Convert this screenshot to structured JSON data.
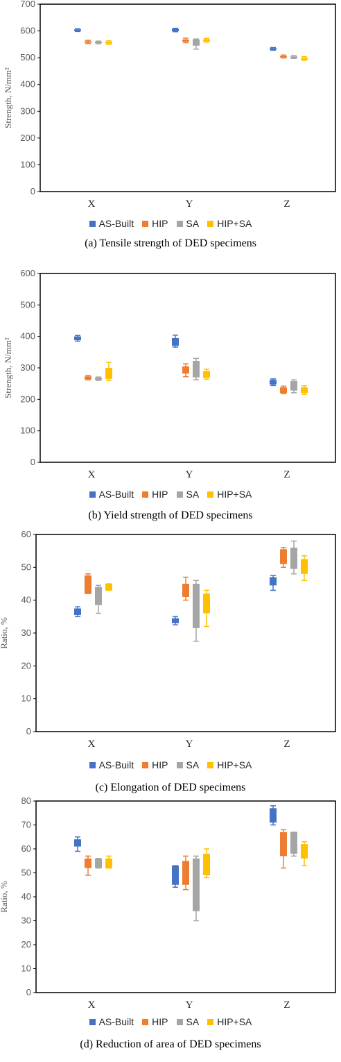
{
  "legend_items": [
    {
      "label": "AS-Built",
      "color": "#4472C4"
    },
    {
      "label": "HIP",
      "color": "#ED7D31"
    },
    {
      "label": "SA",
      "color": "#A5A5A5"
    },
    {
      "label": "HIP+SA",
      "color": "#FFC000"
    }
  ],
  "chart_data": [
    {
      "type": "box",
      "caption": "(a) Tensile strength of DED specimens",
      "ylabel": "Strength, N/mm²",
      "categories": [
        "X",
        "Y",
        "Z"
      ],
      "ylim": [
        0,
        700
      ],
      "yticks": [
        0,
        100,
        200,
        300,
        400,
        500,
        600,
        700
      ],
      "series": [
        {
          "name": "AS-Built",
          "values": [
            {
              "min": 598,
              "q1": 600,
              "q3": 606,
              "max": 608
            },
            {
              "min": 597,
              "q1": 599,
              "q3": 608,
              "max": 610
            },
            {
              "min": 528,
              "q1": 530,
              "q3": 536,
              "max": 538
            }
          ]
        },
        {
          "name": "HIP",
          "values": [
            {
              "min": 553,
              "q1": 556,
              "q3": 562,
              "max": 565
            },
            {
              "min": 556,
              "q1": 560,
              "q3": 568,
              "max": 573
            },
            {
              "min": 499,
              "q1": 501,
              "q3": 507,
              "max": 510
            }
          ]
        },
        {
          "name": "SA",
          "values": [
            {
              "min": 552,
              "q1": 554,
              "q3": 560,
              "max": 562
            },
            {
              "min": 532,
              "q1": 545,
              "q3": 568,
              "max": 570
            },
            {
              "min": 497,
              "q1": 499,
              "q3": 505,
              "max": 508
            }
          ]
        },
        {
          "name": "HIP+SA",
          "values": [
            {
              "min": 550,
              "q1": 553,
              "q3": 560,
              "max": 563
            },
            {
              "min": 558,
              "q1": 561,
              "q3": 569,
              "max": 572
            },
            {
              "min": 490,
              "q1": 493,
              "q3": 500,
              "max": 504
            }
          ]
        }
      ]
    },
    {
      "type": "box",
      "caption": "(b) Yield strength of DED specimens",
      "ylabel": "Strength, N/mm²",
      "categories": [
        "X",
        "Y",
        "Z"
      ],
      "ylim": [
        0,
        600
      ],
      "yticks": [
        0,
        100,
        200,
        300,
        400,
        500,
        600
      ],
      "series": [
        {
          "name": "AS-Built",
          "values": [
            {
              "min": 385,
              "q1": 388,
              "q3": 400,
              "max": 403
            },
            {
              "min": 366,
              "q1": 370,
              "q3": 395,
              "max": 404
            },
            {
              "min": 244,
              "q1": 247,
              "q3": 262,
              "max": 265
            }
          ]
        },
        {
          "name": "HIP",
          "values": [
            {
              "min": 262,
              "q1": 264,
              "q3": 273,
              "max": 276
            },
            {
              "min": 272,
              "q1": 282,
              "q3": 305,
              "max": 313
            },
            {
              "min": 218,
              "q1": 220,
              "q3": 238,
              "max": 242
            }
          ]
        },
        {
          "name": "SA",
          "values": [
            {
              "min": 260,
              "q1": 262,
              "q3": 269,
              "max": 271
            },
            {
              "min": 262,
              "q1": 270,
              "q3": 322,
              "max": 330
            },
            {
              "min": 221,
              "q1": 228,
              "q3": 258,
              "max": 262
            }
          ]
        },
        {
          "name": "HIP+SA",
          "values": [
            {
              "min": 260,
              "q1": 265,
              "q3": 300,
              "max": 318
            },
            {
              "min": 264,
              "q1": 268,
              "q3": 290,
              "max": 296
            },
            {
              "min": 216,
              "q1": 220,
              "q3": 238,
              "max": 243
            }
          ]
        }
      ]
    },
    {
      "type": "box",
      "caption": "(c) Elongation of DED specimens",
      "ylabel": "Ratio, %",
      "categories": [
        "X",
        "Y",
        "Z"
      ],
      "ylim": [
        0,
        60
      ],
      "yticks": [
        0,
        10,
        20,
        30,
        40,
        50,
        60
      ],
      "series": [
        {
          "name": "AS-Built",
          "values": [
            {
              "min": 35,
              "q1": 35.5,
              "q3": 37.5,
              "max": 38
            },
            {
              "min": 32.5,
              "q1": 33,
              "q3": 34.5,
              "max": 35
            },
            {
              "min": 43,
              "q1": 44.5,
              "q3": 47,
              "max": 47.5
            }
          ]
        },
        {
          "name": "HIP",
          "values": [
            {
              "min": 42,
              "q1": 42,
              "q3": 47.5,
              "max": 48
            },
            {
              "min": 40,
              "q1": 41,
              "q3": 45,
              "max": 47
            },
            {
              "min": 50,
              "q1": 51,
              "q3": 55.5,
              "max": 56
            }
          ]
        },
        {
          "name": "SA",
          "values": [
            {
              "min": 36,
              "q1": 38.5,
              "q3": 44,
              "max": 44.5
            },
            {
              "min": 27.5,
              "q1": 31.5,
              "q3": 45,
              "max": 46
            },
            {
              "min": 48,
              "q1": 49.5,
              "q3": 56,
              "max": 58
            }
          ]
        },
        {
          "name": "HIP+SA",
          "values": [
            {
              "min": 43,
              "q1": 43,
              "q3": 45,
              "max": 45
            },
            {
              "min": 32,
              "q1": 36,
              "q3": 42,
              "max": 43
            },
            {
              "min": 46,
              "q1": 48,
              "q3": 52.5,
              "max": 53.5
            }
          ]
        }
      ]
    },
    {
      "type": "box",
      "caption": "(d) Reduction of area of DED specimens",
      "ylabel": "Ratio, %",
      "categories": [
        "X",
        "Y",
        "Z"
      ],
      "ylim": [
        0,
        80
      ],
      "yticks": [
        0,
        10,
        20,
        30,
        40,
        50,
        60,
        70,
        80
      ],
      "series": [
        {
          "name": "AS-Built",
          "values": [
            {
              "min": 59,
              "q1": 61,
              "q3": 64,
              "max": 65
            },
            {
              "min": 44,
              "q1": 45,
              "q3": 53,
              "max": 53
            },
            {
              "min": 70,
              "q1": 71,
              "q3": 77,
              "max": 78
            }
          ]
        },
        {
          "name": "HIP",
          "values": [
            {
              "min": 49,
              "q1": 52,
              "q3": 56,
              "max": 57
            },
            {
              "min": 43,
              "q1": 45,
              "q3": 55,
              "max": 57
            },
            {
              "min": 52,
              "q1": 57,
              "q3": 67,
              "max": 68
            }
          ]
        },
        {
          "name": "SA",
          "values": [
            {
              "min": 52,
              "q1": 52,
              "q3": 56,
              "max": 56
            },
            {
              "min": 30,
              "q1": 34,
              "q3": 56,
              "max": 57
            },
            {
              "min": 57,
              "q1": 58,
              "q3": 67,
              "max": 67
            }
          ]
        },
        {
          "name": "HIP+SA",
          "values": [
            {
              "min": 52,
              "q1": 52,
              "q3": 56,
              "max": 57
            },
            {
              "min": 48,
              "q1": 49,
              "q3": 58,
              "max": 60
            },
            {
              "min": 53,
              "q1": 56,
              "q3": 62,
              "max": 63
            }
          ]
        }
      ]
    }
  ]
}
